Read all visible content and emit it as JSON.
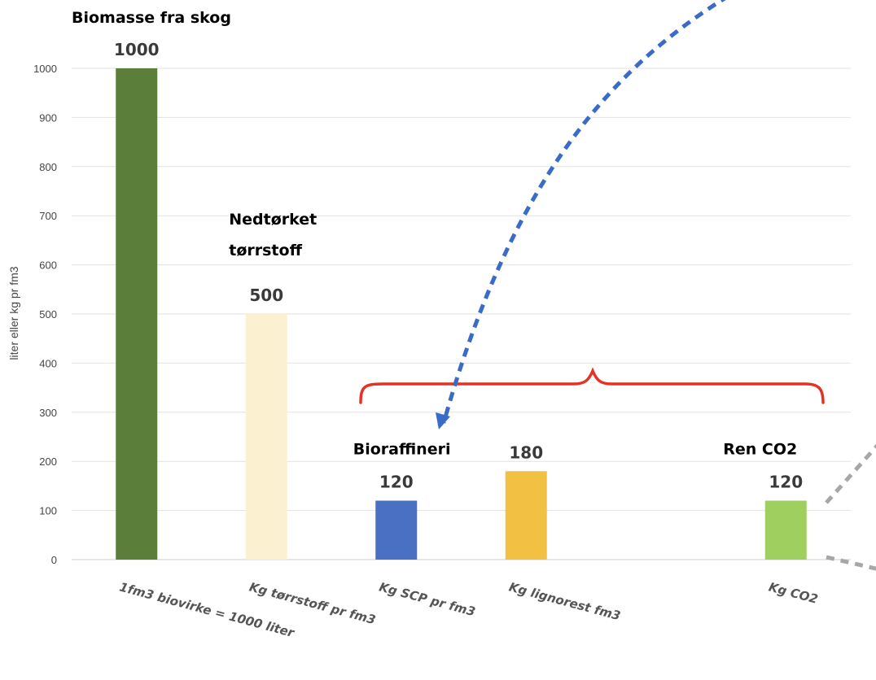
{
  "chart_data": {
    "type": "bar",
    "title": "Biomasse fra skog",
    "ylabel": "liter eller kg pr fm3",
    "xlabel": "",
    "ylim": [
      0,
      1000
    ],
    "yticks": [
      0,
      100,
      200,
      300,
      400,
      500,
      600,
      700,
      800,
      900,
      1000
    ],
    "grid": true,
    "categories": [
      "1fm3 biovirke = 1000 liter",
      "Kg tørrstoff pr fm3",
      "Kg SCP pr fm3",
      "Kg lignorest fm3",
      "",
      "Kg CO2"
    ],
    "values": [
      1000,
      500,
      120,
      180,
      null,
      120
    ],
    "colors": [
      "#5b7f3a",
      "#fbf0cf",
      "#4a70c4",
      "#f2c144",
      null,
      "#9fcf5f"
    ],
    "data_labels": [
      "1000",
      "500",
      "120",
      "180",
      "",
      "120"
    ],
    "annotations": [
      {
        "text": "Nedtørket",
        "category": 1
      },
      {
        "text": "tørrstoff",
        "category": 1
      },
      {
        "text": "Bioraffineri",
        "category": 2
      },
      {
        "text": "Ren CO2",
        "category": 5
      }
    ],
    "decorations": {
      "brace_color": "#e53222",
      "arrow_color": "#3a6bc8",
      "gray_dash_color": "#a7a7a7"
    }
  }
}
